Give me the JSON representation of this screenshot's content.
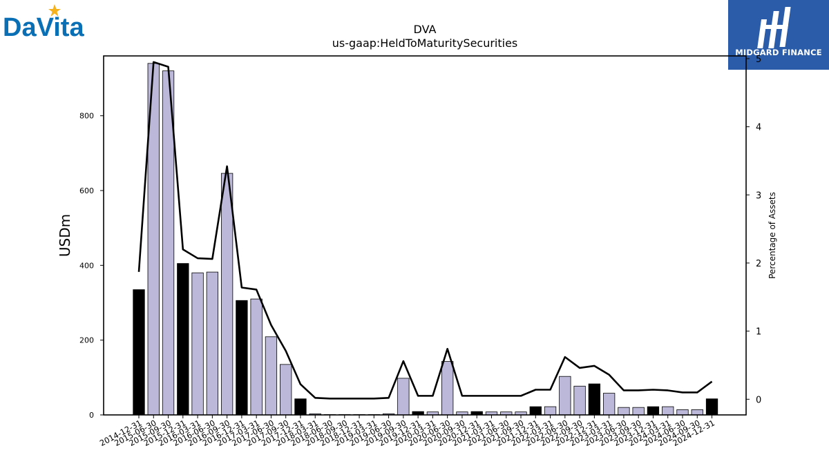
{
  "brand": {
    "company_logo_text": "DaVita",
    "company_logo_color": "#0a6fb4",
    "company_logo_star_color": "#f5b21c",
    "publisher_name": "MIDGARD FINANCE",
    "publisher_bg_color": "#2a5caa"
  },
  "chart_data": {
    "type": "bar",
    "title": "DVA",
    "subtitle": "us-gaap:HeldToMaturitySecurities",
    "xlabel": "",
    "ylabel": "USDm",
    "y2label": "Percentage of Assets",
    "ylim": [
      0,
      960
    ],
    "y2lim": [
      -0.23,
      5.04
    ],
    "yticks": [
      0,
      200,
      400,
      600,
      800
    ],
    "y2ticks": [
      0,
      1,
      2,
      3,
      4,
      5
    ],
    "grid": false,
    "colors": {
      "q4_bar": "#000000",
      "other_bar": "#bcb8da",
      "line": "#000000"
    },
    "categories": [
      "2014-12-31",
      "2015-06-30",
      "2015-09-30",
      "2015-12-31",
      "2016-03-31",
      "2016-06-30",
      "2016-09-30",
      "2016-12-31",
      "2017-03-31",
      "2017-06-30",
      "2017-09-30",
      "2017-12-31",
      "2018-03-31",
      "2018-06-30",
      "2018-09-30",
      "2018-12-31",
      "2019-03-31",
      "2019-06-30",
      "2019-09-30",
      "2019-12-31",
      "2020-03-31",
      "2020-06-30",
      "2020-09-30",
      "2020-12-31",
      "2021-03-31",
      "2021-06-30",
      "2021-09-30",
      "2021-12-31",
      "2022-03-31",
      "2022-06-30",
      "2022-09-30",
      "2022-12-31",
      "2023-03-31",
      "2023-06-30",
      "2023-09-30",
      "2023-12-31",
      "2024-03-31",
      "2024-06-30",
      "2024-09-30",
      "2024-12-31"
    ],
    "series": [
      {
        "axis": "left",
        "kind": "bar",
        "values": [
          335,
          940,
          920,
          405,
          380,
          382,
          646,
          306,
          310,
          209,
          135,
          43,
          3,
          1,
          1,
          1,
          1,
          3,
          98,
          9,
          8,
          143,
          8,
          9,
          8,
          8,
          8,
          22,
          22,
          103,
          77,
          83,
          58,
          20,
          20,
          22,
          22,
          14,
          14,
          43
        ]
      },
      {
        "axis": "right",
        "kind": "line",
        "values": [
          1.87,
          4.95,
          4.88,
          2.2,
          2.07,
          2.06,
          3.42,
          1.64,
          1.61,
          1.09,
          0.71,
          0.22,
          0.02,
          0.01,
          0.01,
          0.01,
          0.01,
          0.02,
          0.56,
          0.05,
          0.05,
          0.74,
          0.05,
          0.05,
          0.05,
          0.05,
          0.05,
          0.14,
          0.14,
          0.62,
          0.46,
          0.49,
          0.36,
          0.13,
          0.13,
          0.14,
          0.13,
          0.1,
          0.1,
          0.26
        ]
      }
    ]
  }
}
